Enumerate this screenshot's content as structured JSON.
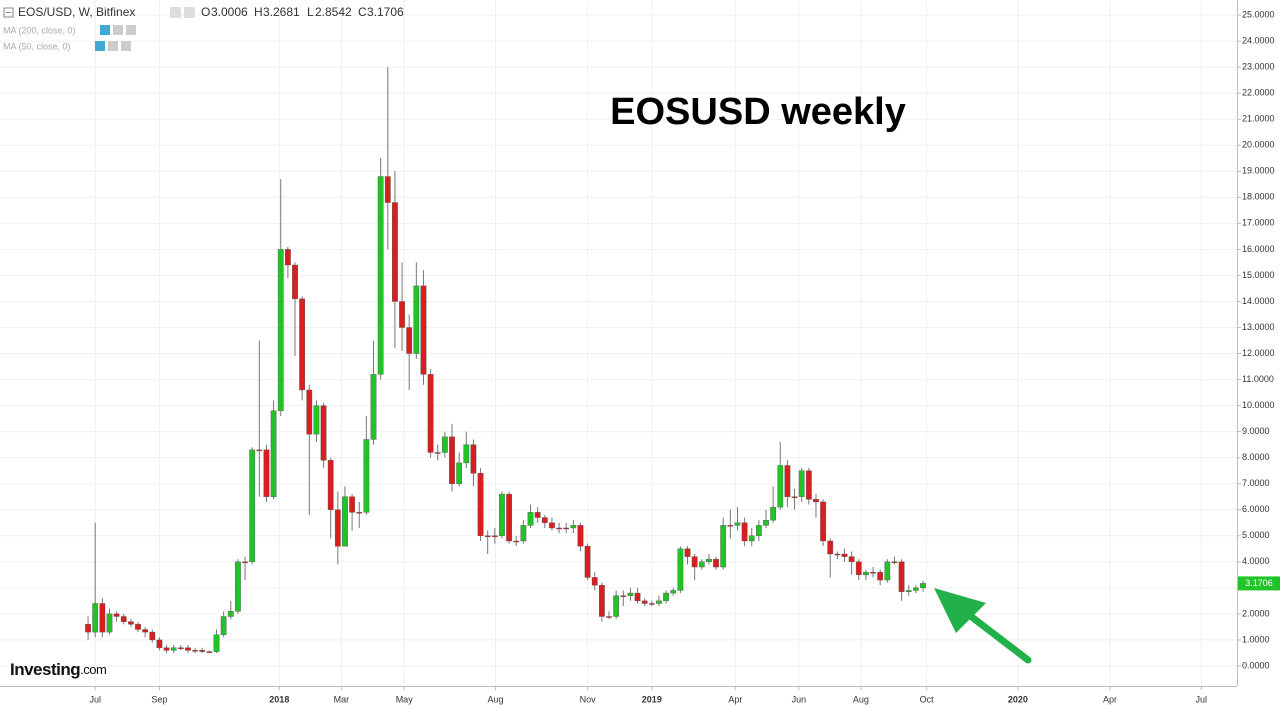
{
  "chart_data": {
    "type": "candlestick",
    "symbol": "EOS/USD, W, Bitfinex",
    "ohlc_labels": [
      "O",
      "H",
      "L",
      "C"
    ],
    "indicators": [
      "MA (200, close, 0)",
      "MA (50, close, 0)"
    ],
    "title": "EOSUSD weekly",
    "logo": {
      "name": "Investing",
      "suffix": ".com"
    },
    "up_color": "#21c329",
    "down_color": "#d81e1e",
    "open": [
      1.6,
      1.3,
      2.4,
      1.3,
      2.0,
      1.9,
      1.7,
      1.6,
      1.4,
      1.3,
      1.0,
      0.7,
      0.6,
      0.7,
      0.7,
      0.6,
      0.6,
      0.55,
      0.55,
      1.2,
      1.9,
      2.1,
      4.0,
      4.0,
      8.3,
      8.3,
      6.5,
      9.8,
      16.0,
      15.4,
      14.1,
      10.6,
      8.9,
      10.0,
      7.9,
      6.0,
      4.6,
      6.5,
      5.9,
      5.9,
      8.7,
      11.2,
      18.8,
      17.8,
      14.0,
      13.0,
      12.0,
      14.6,
      11.2,
      8.2,
      8.2,
      8.8,
      7.0,
      7.8,
      8.5,
      7.4,
      5.0,
      5.0,
      5.0,
      6.6,
      4.8,
      4.8,
      5.4,
      5.9,
      5.7,
      5.5,
      5.3,
      5.3,
      5.3,
      5.4,
      4.6,
      3.4,
      3.1,
      1.9,
      1.9,
      2.7,
      2.7,
      2.8,
      2.5,
      2.4,
      2.4,
      2.5,
      2.8,
      2.9,
      4.5,
      4.2,
      3.8,
      4.0,
      4.1,
      3.8,
      5.4,
      5.4,
      5.5,
      4.8,
      5.0,
      5.4,
      5.6,
      6.1,
      7.7,
      6.5,
      6.5,
      7.5,
      6.4,
      6.3,
      4.8,
      4.3,
      4.3,
      4.2,
      4.0,
      3.5,
      3.6,
      3.6,
      3.3,
      4.0,
      4.0,
      2.85,
      2.9,
      3.0006
    ],
    "high": [
      1.9,
      5.5,
      2.6,
      2.2,
      2.1,
      2.0,
      1.8,
      1.7,
      1.5,
      1.4,
      1.1,
      0.8,
      0.8,
      0.8,
      0.8,
      0.7,
      0.7,
      0.6,
      1.4,
      2.1,
      2.5,
      4.1,
      4.2,
      8.4,
      12.5,
      8.5,
      10.2,
      18.7,
      16.1,
      15.5,
      14.2,
      10.8,
      10.2,
      10.1,
      8.0,
      6.7,
      6.9,
      6.6,
      6.3,
      9.6,
      12.5,
      19.5,
      23.0,
      19.0,
      15.5,
      13.5,
      15.5,
      15.2,
      11.4,
      8.5,
      9.0,
      9.3,
      8.2,
      9.0,
      8.7,
      7.6,
      5.2,
      5.3,
      6.7,
      6.7,
      5.0,
      5.6,
      6.2,
      6.1,
      5.8,
      5.7,
      5.5,
      5.5,
      5.6,
      5.5,
      4.7,
      3.6,
      3.2,
      2.1,
      2.9,
      2.9,
      3.0,
      3.0,
      2.6,
      2.5,
      2.7,
      2.9,
      3.0,
      4.6,
      4.6,
      4.3,
      4.1,
      4.3,
      4.2,
      5.7,
      6.0,
      6.1,
      5.7,
      5.3,
      5.6,
      6.0,
      6.9,
      8.6,
      7.9,
      6.8,
      7.6,
      7.6,
      6.6,
      6.4,
      4.9,
      4.4,
      4.5,
      4.4,
      4.1,
      3.7,
      3.8,
      3.7,
      4.1,
      4.2,
      4.1,
      3.1,
      3.1,
      3.2681
    ],
    "low": [
      1.0,
      1.1,
      1.1,
      1.2,
      1.7,
      1.6,
      1.5,
      1.3,
      1.1,
      0.9,
      0.6,
      0.5,
      0.5,
      0.6,
      0.5,
      0.5,
      0.5,
      0.5,
      0.5,
      1.1,
      1.8,
      2.0,
      3.3,
      3.9,
      6.5,
      6.3,
      6.4,
      9.6,
      14.9,
      11.9,
      10.2,
      5.8,
      8.6,
      7.6,
      4.9,
      3.9,
      4.6,
      5.2,
      5.3,
      5.8,
      8.5,
      11.0,
      16.0,
      12.2,
      12.1,
      10.6,
      11.8,
      10.8,
      8.0,
      7.9,
      8.0,
      6.7,
      6.9,
      7.6,
      6.9,
      4.8,
      4.3,
      4.7,
      4.9,
      4.7,
      4.6,
      4.7,
      5.3,
      5.5,
      5.3,
      5.2,
      5.1,
      5.1,
      5.1,
      4.4,
      3.3,
      2.9,
      1.7,
      1.8,
      1.8,
      2.3,
      2.5,
      2.4,
      2.3,
      2.3,
      2.3,
      2.4,
      2.7,
      2.8,
      3.9,
      3.3,
      3.7,
      3.9,
      3.7,
      3.7,
      4.9,
      5.2,
      4.6,
      4.6,
      4.8,
      5.3,
      5.5,
      6.0,
      6.1,
      6.0,
      6.3,
      6.2,
      5.7,
      4.6,
      3.4,
      4.1,
      4.0,
      3.5,
      3.3,
      3.3,
      3.4,
      3.1,
      3.2,
      3.9,
      2.5,
      2.7,
      2.8,
      2.8542
    ],
    "close": [
      1.3,
      2.4,
      1.3,
      2.0,
      1.9,
      1.7,
      1.6,
      1.4,
      1.3,
      1.0,
      0.7,
      0.6,
      0.7,
      0.7,
      0.6,
      0.6,
      0.55,
      0.55,
      1.2,
      1.9,
      2.1,
      4.0,
      4.0,
      8.3,
      8.3,
      6.5,
      9.8,
      16.0,
      15.4,
      14.1,
      10.6,
      8.9,
      10.0,
      7.9,
      6.0,
      4.6,
      6.5,
      5.9,
      5.9,
      8.7,
      11.2,
      18.8,
      17.8,
      14.0,
      13.0,
      12.0,
      14.6,
      11.2,
      8.2,
      8.2,
      8.8,
      7.0,
      7.8,
      8.5,
      7.4,
      5.0,
      5.0,
      5.0,
      6.6,
      4.8,
      4.8,
      5.4,
      5.9,
      5.7,
      5.5,
      5.3,
      5.3,
      5.3,
      5.4,
      4.6,
      3.4,
      3.1,
      1.9,
      1.9,
      2.7,
      2.7,
      2.8,
      2.5,
      2.4,
      2.4,
      2.5,
      2.8,
      2.9,
      4.5,
      4.2,
      3.8,
      4.0,
      4.1,
      3.8,
      5.4,
      5.4,
      5.5,
      4.8,
      5.0,
      5.4,
      5.6,
      6.1,
      7.7,
      6.5,
      6.5,
      7.5,
      6.4,
      6.3,
      4.8,
      4.3,
      4.3,
      4.2,
      4.0,
      3.5,
      3.6,
      3.6,
      3.3,
      4.0,
      4.0,
      2.85,
      2.9,
      3.0,
      3.1706
    ],
    "xlim": [
      -12.34,
      161
    ],
    "xticks": [
      {
        "value": 1,
        "label": "Jul"
      },
      {
        "value": 10,
        "label": "Sep"
      },
      {
        "value": 26.8,
        "label": "2018"
      },
      {
        "value": 35.5,
        "label": "Mar"
      },
      {
        "value": 44.3,
        "label": "May"
      },
      {
        "value": 57.1,
        "label": "Aug"
      },
      {
        "value": 70,
        "label": "Nov"
      },
      {
        "value": 79,
        "label": "2019"
      },
      {
        "value": 90.7,
        "label": "Apr"
      },
      {
        "value": 99.6,
        "label": "Jun"
      },
      {
        "value": 108.3,
        "label": "Aug"
      },
      {
        "value": 117.5,
        "label": "Oct"
      },
      {
        "value": 130.3,
        "label": "2020"
      },
      {
        "value": 143.2,
        "label": "Apr"
      },
      {
        "value": 156,
        "label": "Jul"
      }
    ],
    "ylim": [
      -0.77,
      25.58
    ],
    "yticks": [
      {
        "value": 0,
        "label": "0.0000"
      },
      {
        "value": 1,
        "label": "1.0000"
      },
      {
        "value": 2,
        "label": "2.0000"
      },
      {
        "value": 3,
        "label": "3.0000"
      },
      {
        "value": 4,
        "label": "4.0000"
      },
      {
        "value": 5,
        "label": "5.0000"
      },
      {
        "value": 6,
        "label": "6.0000"
      },
      {
        "value": 7,
        "label": "7.0000"
      },
      {
        "value": 8,
        "label": "8.0000"
      },
      {
        "value": 9,
        "label": "9.0000"
      },
      {
        "value": 10,
        "label": "10.0000"
      },
      {
        "value": 11,
        "label": "11.0000"
      },
      {
        "value": 12,
        "label": "12.0000"
      },
      {
        "value": 13,
        "label": "13.0000"
      },
      {
        "value": 14,
        "label": "14.0000"
      },
      {
        "value": 15,
        "label": "15.0000"
      },
      {
        "value": 16,
        "label": "16.0000"
      },
      {
        "value": 17,
        "label": "17.0000"
      },
      {
        "value": 18,
        "label": "18.0000"
      },
      {
        "value": 19,
        "label": "19.0000"
      },
      {
        "value": 20,
        "label": "20.0000"
      },
      {
        "value": 21,
        "label": "21.0000"
      },
      {
        "value": 22,
        "label": "22.0000"
      },
      {
        "value": 23,
        "label": "23.0000"
      },
      {
        "value": 24,
        "label": "24.0000"
      },
      {
        "value": 25,
        "label": "25.0000"
      }
    ],
    "grid": true
  }
}
